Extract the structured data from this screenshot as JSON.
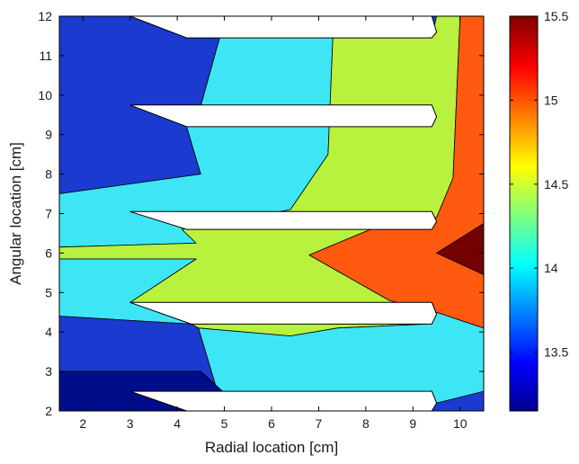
{
  "chart_data": {
    "type": "contour",
    "title": "",
    "xlabel": "Radial location [cm]",
    "ylabel": "Angular location [cm]",
    "xlim": [
      1.5,
      10.5
    ],
    "ylim": [
      2,
      12
    ],
    "xticks": [
      2,
      3,
      4,
      5,
      6,
      7,
      8,
      9,
      10
    ],
    "yticks": [
      2,
      3,
      4,
      5,
      6,
      7,
      8,
      9,
      10,
      11,
      12
    ],
    "colormap": "jet",
    "colorbar": {
      "range": [
        13.15,
        15.5
      ],
      "ticks": [
        13.5,
        14,
        14.5,
        15,
        15.5
      ],
      "location": "right"
    },
    "filled_levels": [
      {
        "value": 13.2,
        "color": "#000d8a"
      },
      {
        "value": 13.45,
        "color": "#1b3ad0"
      },
      {
        "value": 13.95,
        "color": "#3ee6f5"
      },
      {
        "value": 14.45,
        "color": "#b8f23e"
      },
      {
        "value": 15.0,
        "color": "#ff5a10"
      },
      {
        "value": 15.45,
        "color": "#740000"
      }
    ],
    "contour_regions": [
      {
        "value": 13.45,
        "polygon": [
          [
            1.5,
            12
          ],
          [
            3,
            12
          ],
          [
            4.2,
            11.45
          ],
          [
            4.9,
            11.45
          ],
          [
            4.4,
            9.3
          ],
          [
            4.2,
            9.2
          ],
          [
            4.5,
            8.0
          ],
          [
            1.5,
            7.5
          ]
        ]
      },
      {
        "value": 13.95,
        "polygon": [
          [
            1.5,
            7.5
          ],
          [
            4.5,
            8.0
          ],
          [
            4.2,
            9.2
          ],
          [
            4.4,
            9.3
          ],
          [
            4.9,
            11.45
          ],
          [
            7.3,
            11.45
          ],
          [
            7.2,
            8.5
          ],
          [
            6.4,
            7.1
          ],
          [
            4.1,
            6.6
          ],
          [
            4.4,
            6.25
          ],
          [
            1.5,
            6.15
          ]
        ]
      },
      {
        "value": 14.45,
        "polygon": [
          [
            7.3,
            11.45
          ],
          [
            9.4,
            11.45
          ],
          [
            9.5,
            12
          ],
          [
            10.0,
            12
          ],
          [
            9.85,
            7.9
          ],
          [
            9.5,
            6.9
          ],
          [
            8.1,
            6.6
          ],
          [
            6.8,
            5.95
          ],
          [
            8.5,
            4.8
          ],
          [
            9.5,
            4.5
          ],
          [
            9.3,
            4.2
          ],
          [
            7.4,
            4.1
          ],
          [
            6.4,
            3.9
          ],
          [
            4.45,
            4.1
          ],
          [
            4.3,
            4.2
          ],
          [
            3.0,
            4.75
          ],
          [
            4.4,
            5.85
          ],
          [
            1.5,
            5.85
          ],
          [
            1.5,
            6.15
          ],
          [
            4.4,
            6.25
          ],
          [
            4.1,
            6.6
          ],
          [
            6.4,
            7.1
          ],
          [
            7.2,
            8.5
          ]
        ]
      },
      {
        "value": 13.95,
        "polygon": [
          [
            1.5,
            5.85
          ],
          [
            4.4,
            5.85
          ],
          [
            3.0,
            4.75
          ],
          [
            4.3,
            4.2
          ],
          [
            1.5,
            4.4
          ]
        ]
      },
      {
        "value": 13.95,
        "polygon": [
          [
            4.45,
            4.1
          ],
          [
            6.4,
            3.9
          ],
          [
            7.4,
            4.1
          ],
          [
            9.3,
            4.2
          ],
          [
            9.5,
            4.5
          ],
          [
            10.5,
            4.1
          ],
          [
            10.5,
            2.5
          ],
          [
            9.5,
            2.2
          ],
          [
            9.4,
            2.5
          ],
          [
            8.2,
            2.4
          ],
          [
            4.85,
            2.5
          ]
        ]
      },
      {
        "value": 13.45,
        "polygon": [
          [
            1.5,
            4.4
          ],
          [
            4.3,
            4.2
          ],
          [
            4.45,
            4.1
          ],
          [
            4.85,
            2.5
          ],
          [
            8.2,
            2.4
          ],
          [
            5.0,
            2.45
          ],
          [
            4.5,
            3.0
          ],
          [
            1.5,
            3.0
          ]
        ]
      },
      {
        "value": 13.2,
        "polygon": [
          [
            1.5,
            3.0
          ],
          [
            4.5,
            3.0
          ],
          [
            5.0,
            2.45
          ],
          [
            4.2,
            2.0
          ],
          [
            1.5,
            2.0
          ]
        ]
      },
      {
        "value": 15.0,
        "polygon": [
          [
            10.0,
            12
          ],
          [
            10.5,
            12
          ],
          [
            10.5,
            4.1
          ],
          [
            9.5,
            4.5
          ],
          [
            8.5,
            4.8
          ],
          [
            6.8,
            5.95
          ],
          [
            8.1,
            6.6
          ],
          [
            9.5,
            6.9
          ],
          [
            9.85,
            7.9
          ]
        ]
      },
      {
        "value": 15.45,
        "polygon": [
          [
            9.5,
            6.0
          ],
          [
            10.5,
            6.75
          ],
          [
            10.5,
            5.45
          ]
        ]
      }
    ],
    "blank_slots": [
      [
        [
          3.0,
          12.0
        ],
        [
          9.4,
          12.0
        ],
        [
          9.5,
          11.6
        ],
        [
          9.4,
          11.45
        ],
        [
          4.2,
          11.45
        ]
      ],
      [
        [
          3.0,
          9.75
        ],
        [
          9.4,
          9.75
        ],
        [
          9.5,
          9.45
        ],
        [
          9.4,
          9.2
        ],
        [
          4.2,
          9.2
        ]
      ],
      [
        [
          3.0,
          7.05
        ],
        [
          9.4,
          7.05
        ],
        [
          9.5,
          6.8
        ],
        [
          9.4,
          6.6
        ],
        [
          4.2,
          6.6
        ]
      ],
      [
        [
          3.0,
          4.75
        ],
        [
          9.4,
          4.75
        ],
        [
          9.5,
          4.45
        ],
        [
          9.4,
          4.2
        ],
        [
          4.3,
          4.2
        ]
      ],
      [
        [
          3.0,
          2.5
        ],
        [
          9.4,
          2.5
        ],
        [
          9.5,
          2.2
        ],
        [
          9.4,
          2.0
        ],
        [
          4.2,
          2.0
        ]
      ]
    ]
  }
}
